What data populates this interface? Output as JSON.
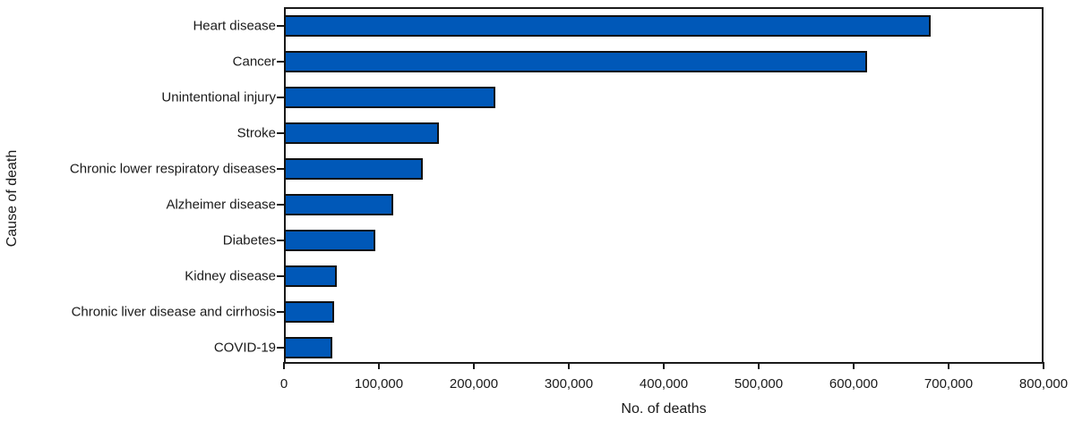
{
  "chart_data": {
    "type": "bar",
    "orientation": "horizontal",
    "title": "",
    "xlabel": "No. of deaths",
    "ylabel": "Cause of death",
    "xlim": [
      0,
      800000
    ],
    "xticks": [
      "0",
      "100,000",
      "200,000",
      "300,000",
      "400,000",
      "500,000",
      "600,000",
      "700,000",
      "800,000"
    ],
    "grid": false,
    "legend": null,
    "bar_color": "#0058b8",
    "categories": [
      "Heart disease",
      "Cancer",
      "Unintentional injury",
      "Stroke",
      "Chronic lower respiratory diseases",
      "Alzheimer disease",
      "Diabetes",
      "Kidney disease",
      "Chronic liver disease and cirrhosis",
      "COVID-19"
    ],
    "values": [
      681000,
      614000,
      223000,
      163000,
      146000,
      115000,
      96000,
      56000,
      53000,
      51000
    ]
  },
  "axes": {
    "xlabel": "No. of deaths",
    "ylabel": "Cause of death"
  }
}
